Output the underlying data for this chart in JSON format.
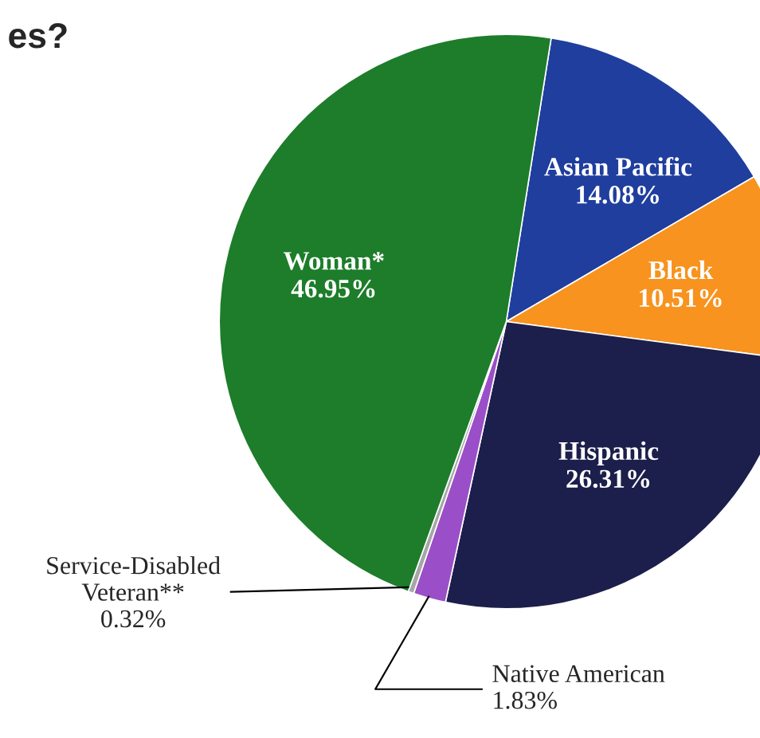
{
  "chart_data": {
    "type": "pie",
    "title": "es?",
    "categories": [
      "Asian Pacific",
      "Black",
      "Hispanic",
      "Native American",
      "Service-Disabled Veteran**",
      "Woman*"
    ],
    "values": [
      14.08,
      10.51,
      26.31,
      1.83,
      0.32,
      46.95
    ],
    "colors": [
      "#1f3e9e",
      "#f7931e",
      "#1c1f4b",
      "#9a4fc8",
      "#a6a6a6",
      "#1d7d2a"
    ],
    "value_labels": [
      "14.08%",
      "10.51%",
      "26.31%",
      "1.83%",
      "0.32%",
      "46.95%"
    ],
    "legend": false
  }
}
